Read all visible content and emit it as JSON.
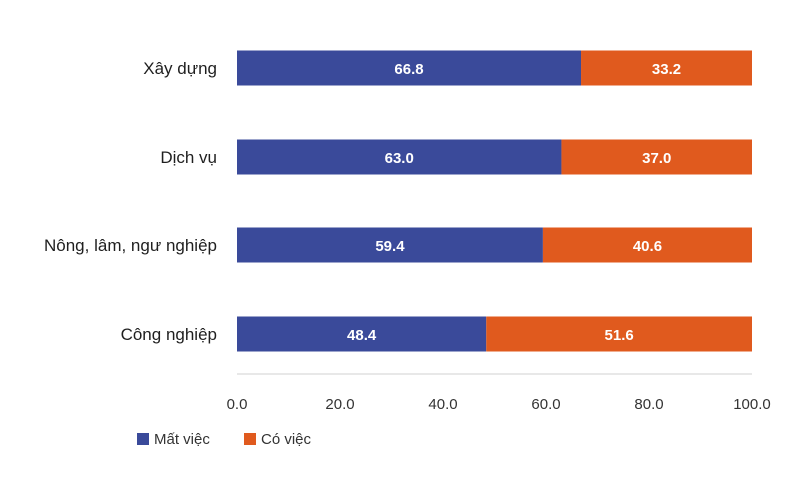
{
  "chart_data": {
    "type": "bar",
    "orientation": "horizontal",
    "stacked": true,
    "categories": [
      "Xây dựng",
      "Dịch vụ",
      "Nông, lâm, ngư nghiệp",
      "Công nghiệp"
    ],
    "series": [
      {
        "name": "Mất việc",
        "values": [
          66.8,
          63.0,
          59.4,
          48.4
        ],
        "labels": [
          "66.8",
          "63.0",
          "59.4",
          "48.4"
        ]
      },
      {
        "name": "Có việc",
        "values": [
          33.2,
          37.0,
          40.6,
          51.6
        ],
        "labels": [
          "33.2",
          "37.0",
          "40.6",
          "51.6"
        ]
      }
    ],
    "xlim": [
      0,
      100
    ],
    "xticks": [
      0,
      20,
      40,
      60,
      80,
      100
    ],
    "xtick_labels": [
      "0.0",
      "20.0",
      "40.0",
      "60.0",
      "80.0",
      "100.0"
    ],
    "grid": false,
    "legend_position": "bottom-left",
    "colors": [
      "#3a4a9a",
      "#e05a1e"
    ]
  }
}
